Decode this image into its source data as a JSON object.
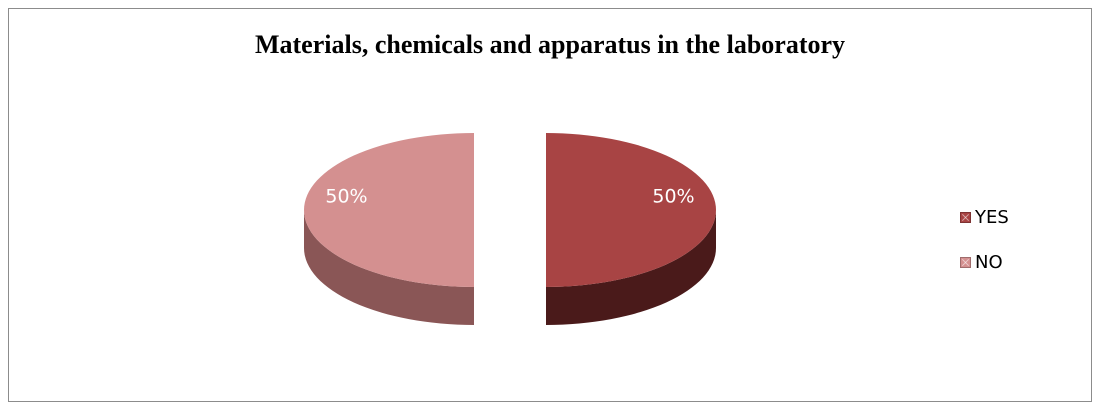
{
  "chart_data": {
    "type": "pie",
    "title": "Materials, chemicals and apparatus in the laboratory",
    "slices": [
      {
        "label": "YES",
        "value": 50,
        "display": "50%",
        "color": "#a84444",
        "side_color": "#4a1a1a"
      },
      {
        "label": "NO",
        "value": 50,
        "display": "50%",
        "color": "#d49090",
        "side_color": "#8a5656"
      }
    ],
    "legend_position": "right",
    "style": "3d-exploded"
  }
}
